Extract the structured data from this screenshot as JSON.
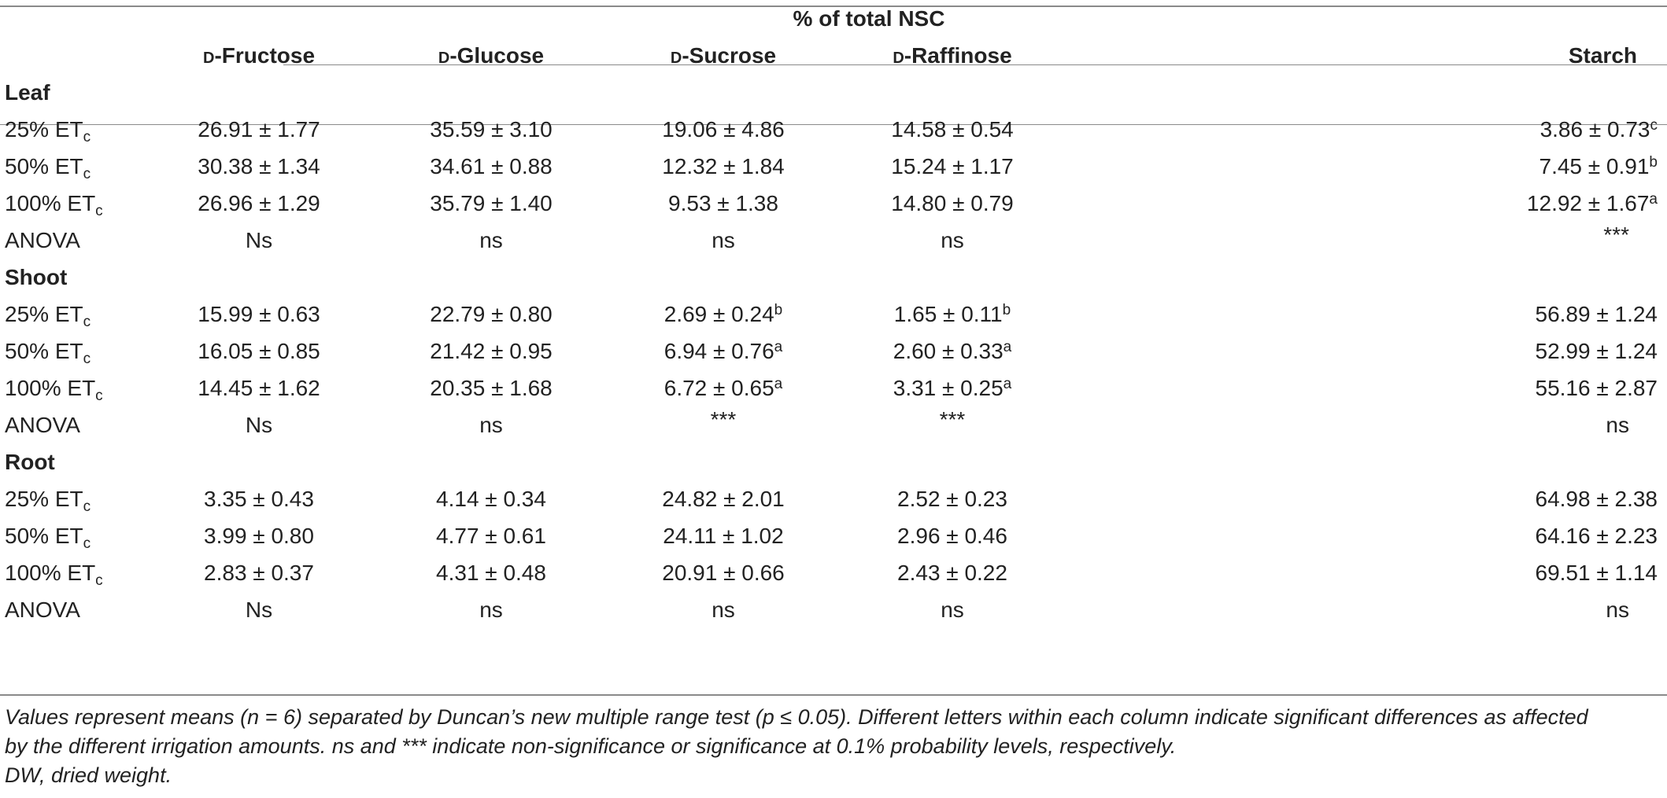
{
  "table": {
    "span_header": "% of total NSC",
    "columns": [
      {
        "prefix": "d",
        "name": "-Fructose"
      },
      {
        "prefix": "d",
        "name": "-Glucose"
      },
      {
        "prefix": "d",
        "name": "-Sucrose"
      },
      {
        "prefix": "d",
        "name": "-Raffinose"
      },
      {
        "prefix": "",
        "name": "Starch"
      }
    ],
    "groups": [
      {
        "name": "Leaf",
        "rows": [
          {
            "label": "25% ET",
            "sub": "c",
            "cells": [
              {
                "v": "26.91 ± 1.77",
                "s": ""
              },
              {
                "v": "35.59 ± 3.10",
                "s": ""
              },
              {
                "v": "19.06 ± 4.86",
                "s": ""
              },
              {
                "v": "14.58 ± 0.54",
                "s": ""
              },
              {
                "v": "3.86 ± 0.73",
                "s": "c"
              }
            ]
          },
          {
            "label": "50% ET",
            "sub": "c",
            "cells": [
              {
                "v": "30.38 ± 1.34",
                "s": ""
              },
              {
                "v": "34.61 ± 0.88",
                "s": ""
              },
              {
                "v": "12.32 ± 1.84",
                "s": ""
              },
              {
                "v": "15.24 ± 1.17",
                "s": ""
              },
              {
                "v": "7.45 ± 0.91",
                "s": "b"
              }
            ]
          },
          {
            "label": "100% ET",
            "sub": "c",
            "cells": [
              {
                "v": "26.96 ± 1.29",
                "s": ""
              },
              {
                "v": "35.79 ± 1.40",
                "s": ""
              },
              {
                "v": "9.53 ± 1.38",
                "s": ""
              },
              {
                "v": "14.80 ± 0.79",
                "s": ""
              },
              {
                "v": "12.92 ± 1.67",
                "s": "a"
              }
            ]
          }
        ],
        "anova": {
          "label": "ANOVA",
          "cells": [
            "Ns",
            "ns",
            "ns",
            "ns",
            "***"
          ]
        }
      },
      {
        "name": "Shoot",
        "rows": [
          {
            "label": "25% ET",
            "sub": "c",
            "cells": [
              {
                "v": "15.99 ± 0.63",
                "s": ""
              },
              {
                "v": "22.79 ± 0.80",
                "s": ""
              },
              {
                "v": "2.69 ± 0.24",
                "s": "b"
              },
              {
                "v": "1.65 ± 0.11",
                "s": "b"
              },
              {
                "v": "56.89 ± 1.24",
                "s": ""
              }
            ]
          },
          {
            "label": "50% ET",
            "sub": "c",
            "cells": [
              {
                "v": "16.05 ± 0.85",
                "s": ""
              },
              {
                "v": "21.42 ± 0.95",
                "s": ""
              },
              {
                "v": "6.94 ± 0.76",
                "s": "a"
              },
              {
                "v": "2.60 ± 0.33",
                "s": "a"
              },
              {
                "v": "52.99 ± 1.24",
                "s": ""
              }
            ]
          },
          {
            "label": "100% ET",
            "sub": "c",
            "cells": [
              {
                "v": "14.45 ± 1.62",
                "s": ""
              },
              {
                "v": "20.35 ± 1.68",
                "s": ""
              },
              {
                "v": "6.72 ± 0.65",
                "s": "a"
              },
              {
                "v": "3.31 ± 0.25",
                "s": "a"
              },
              {
                "v": "55.16 ± 2.87",
                "s": ""
              }
            ]
          }
        ],
        "anova": {
          "label": "ANOVA",
          "cells": [
            "Ns",
            "ns",
            "***",
            "***",
            "ns"
          ]
        }
      },
      {
        "name": "Root",
        "rows": [
          {
            "label": "25% ET",
            "sub": "c",
            "cells": [
              {
                "v": "3.35 ± 0.43",
                "s": ""
              },
              {
                "v": "4.14 ± 0.34",
                "s": ""
              },
              {
                "v": "24.82 ± 2.01",
                "s": ""
              },
              {
                "v": "2.52 ± 0.23",
                "s": ""
              },
              {
                "v": "64.98 ± 2.38",
                "s": ""
              }
            ]
          },
          {
            "label": "50% ET",
            "sub": "c",
            "cells": [
              {
                "v": "3.99 ± 0.80",
                "s": ""
              },
              {
                "v": "4.77 ± 0.61",
                "s": ""
              },
              {
                "v": "24.11 ± 1.02",
                "s": ""
              },
              {
                "v": "2.96 ± 0.46",
                "s": ""
              },
              {
                "v": "64.16 ± 2.23",
                "s": ""
              }
            ]
          },
          {
            "label": "100% ET",
            "sub": "c",
            "cells": [
              {
                "v": "2.83 ± 0.37",
                "s": ""
              },
              {
                "v": "4.31 ± 0.48",
                "s": ""
              },
              {
                "v": "20.91 ± 0.66",
                "s": ""
              },
              {
                "v": "2.43 ± 0.22",
                "s": ""
              },
              {
                "v": "69.51 ± 1.14",
                "s": ""
              }
            ]
          }
        ],
        "anova": {
          "label": "ANOVA",
          "cells": [
            "Ns",
            "ns",
            "ns",
            "ns",
            "ns"
          ]
        }
      }
    ]
  },
  "footnote": {
    "line1": "Values represent means (n = 6) separated by Duncan’s new multiple range test (p ≤ 0.05). Different letters within each column indicate significant differences as affected",
    "line2": "by the different irrigation amounts. ns and *** indicate non-significance or significance at 0.1% probability levels, respectively.",
    "line3": "DW, dried weight."
  }
}
